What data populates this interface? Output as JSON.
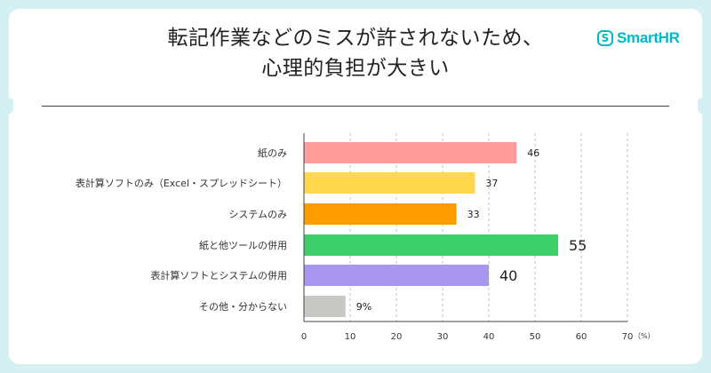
{
  "header": {
    "title_line1": "転記作業などのミスが許されないため、",
    "title_line2": "心理的負担が大きい"
  },
  "brand": {
    "logo_text": "SmartHR",
    "logo_mark": "S",
    "color": "#00b8c8"
  },
  "chart_data": {
    "type": "bar",
    "orientation": "horizontal",
    "categories": [
      "紙のみ",
      "表計算ソフトのみ（Excel・スプレッドシート）",
      "システムのみ",
      "紙と他ツールの併用",
      "表計算ソフトとシステムの併用",
      "その他・分からない"
    ],
    "values": [
      46,
      37,
      33,
      55,
      40,
      9
    ],
    "value_labels": [
      "46",
      "37",
      "33",
      "55",
      "40",
      "9%"
    ],
    "colors": [
      "#ff9d9d",
      "#ffd84d",
      "#ff9d00",
      "#3ccf6a",
      "#a896f0",
      "#c8c8c4"
    ],
    "emphasized": [
      false,
      false,
      false,
      true,
      true,
      false
    ],
    "xlim": [
      0,
      70
    ],
    "xticks": [
      0,
      10,
      20,
      30,
      40,
      50,
      60,
      70
    ],
    "unit_label": "（%）",
    "grid": "dashed vertical"
  }
}
